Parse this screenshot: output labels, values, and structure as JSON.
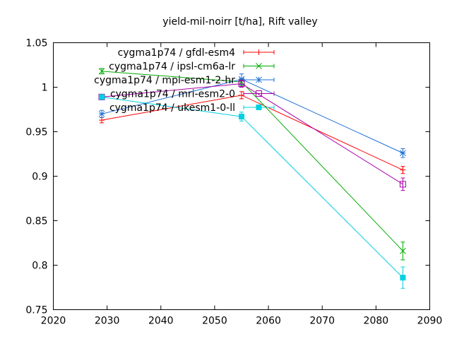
{
  "chart_data": {
    "type": "line",
    "title": "yield-mil-noirr [t/ha], Rift valley",
    "xlabel": "",
    "ylabel": "",
    "xlim": [
      2020,
      2090
    ],
    "ylim": [
      0.75,
      1.05
    ],
    "x_ticks": [
      "2020",
      "2030",
      "2040",
      "2050",
      "2060",
      "2070",
      "2080",
      "2090"
    ],
    "y_ticks": [
      "0.75",
      "0.8",
      "0.85",
      "0.9",
      "0.95",
      "1",
      "1.05"
    ],
    "grid": false,
    "legend_position": "top-left",
    "series": [
      {
        "name": "cygma1p74 / gfdl-esm4",
        "color": "#ff0000",
        "marker": "plus",
        "points": [
          {
            "x": 2029,
            "y": 0.963,
            "err": 0.003
          },
          {
            "x": 2055,
            "y": 0.991,
            "err": 0.004
          },
          {
            "x": 2085,
            "y": 0.907,
            "err": 0.004
          }
        ]
      },
      {
        "name": "cygma1p74 / ipsl-cm6a-lr",
        "color": "#00aa00",
        "marker": "cross",
        "points": [
          {
            "x": 2029,
            "y": 1.018,
            "err": 0.003
          },
          {
            "x": 2055,
            "y": 1.006,
            "err": 0.004
          },
          {
            "x": 2085,
            "y": 0.816,
            "err": 0.01
          }
        ]
      },
      {
        "name": "cygma1p74 / mpi-esm1-2-hr",
        "color": "#1f6fd6",
        "marker": "star",
        "points": [
          {
            "x": 2029,
            "y": 0.97,
            "err": 0.004
          },
          {
            "x": 2055,
            "y": 1.009,
            "err": 0.006
          },
          {
            "x": 2085,
            "y": 0.926,
            "err": 0.005
          }
        ]
      },
      {
        "name": "cygma1p74 / mri-esm2-0",
        "color": "#aa00aa",
        "marker": "square-open",
        "points": [
          {
            "x": 2029,
            "y": 0.989,
            "err": 0.003
          },
          {
            "x": 2055,
            "y": 1.004,
            "err": 0.004
          },
          {
            "x": 2085,
            "y": 0.891,
            "err": 0.007
          }
        ]
      },
      {
        "name": "cygma1p74 / ukesm1-0-ll",
        "color": "#00d0e0",
        "marker": "square-filled",
        "points": [
          {
            "x": 2029,
            "y": 0.989,
            "err": 0.002
          },
          {
            "x": 2055,
            "y": 0.967,
            "err": 0.005
          },
          {
            "x": 2085,
            "y": 0.786,
            "err": 0.012
          }
        ]
      }
    ]
  }
}
